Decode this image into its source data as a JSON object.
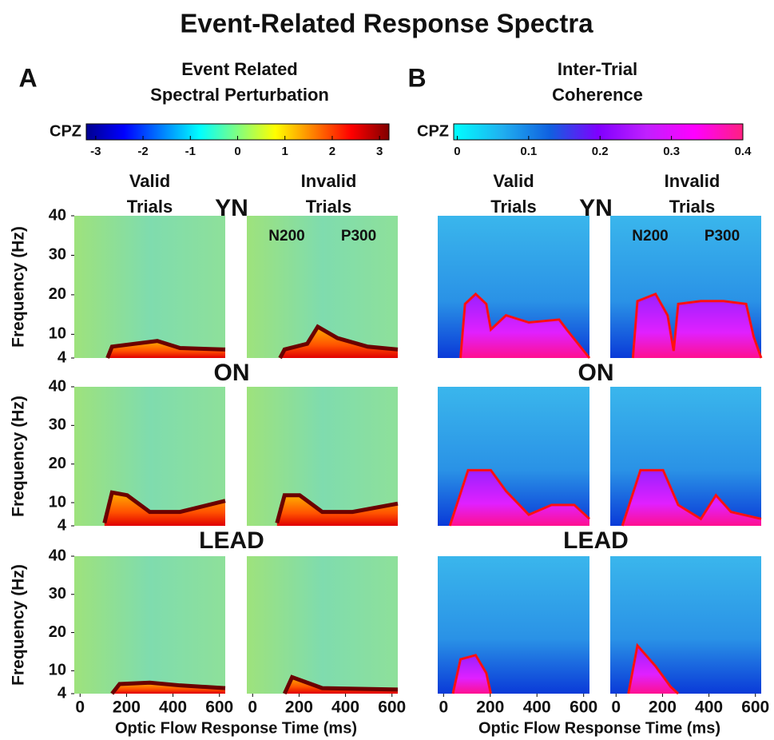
{
  "title": "Event-Related Response Spectra",
  "chart_data": [
    {
      "type": "spectrogram",
      "letter": "A",
      "title": [
        "Event Related",
        "Spectral Perturbation"
      ],
      "colorbar": {
        "label": "CPZ",
        "lim": [
          -3.2,
          3.2
        ],
        "ticks": [
          -3,
          -2,
          -1,
          0,
          1,
          2,
          3
        ],
        "colors": [
          "#00008f",
          "#0000ff",
          "#0080ff",
          "#00ffff",
          "#80ff80",
          "#ffff00",
          "#ff8000",
          "#ff0000",
          "#800000"
        ]
      },
      "columns": [
        [
          "Valid",
          "Trials"
        ],
        [
          "Invalid",
          "Trials"
        ]
      ],
      "rows": [
        "YN",
        "ON",
        "LEAD"
      ],
      "annotations": [
        "N200",
        "P300"
      ],
      "ylabel": "Frequency (Hz)",
      "ylim": [
        4,
        40
      ],
      "yticks": [
        4,
        10,
        20,
        30,
        40
      ],
      "xlim": [
        -25,
        625
      ],
      "xticks": [
        0,
        200,
        400,
        600
      ],
      "xlabel": "Optic Flow Response Time (ms)"
    },
    {
      "type": "spectrogram",
      "letter": "B",
      "title": [
        "Inter-Trial",
        "Coherence"
      ],
      "colorbar": {
        "label": "CPZ",
        "lim": [
          -0.005,
          0.4
        ],
        "ticks": [
          0,
          0.1,
          0.2,
          0.3,
          0.4
        ],
        "colors": [
          "#00ffff",
          "#20b0f0",
          "#1060e0",
          "#8000ff",
          "#c020ff",
          "#ff00ff",
          "#ff2080"
        ]
      },
      "columns": [
        [
          "Valid",
          "Trials"
        ],
        [
          "Invalid",
          "Trials"
        ]
      ],
      "rows": [
        "YN",
        "ON",
        "LEAD"
      ],
      "annotations": [
        "N200",
        "P300"
      ],
      "xlim": [
        -25,
        625
      ],
      "xticks": [
        0,
        200,
        400,
        600
      ],
      "xlabel": "Optic Flow Response Time (ms)"
    }
  ]
}
